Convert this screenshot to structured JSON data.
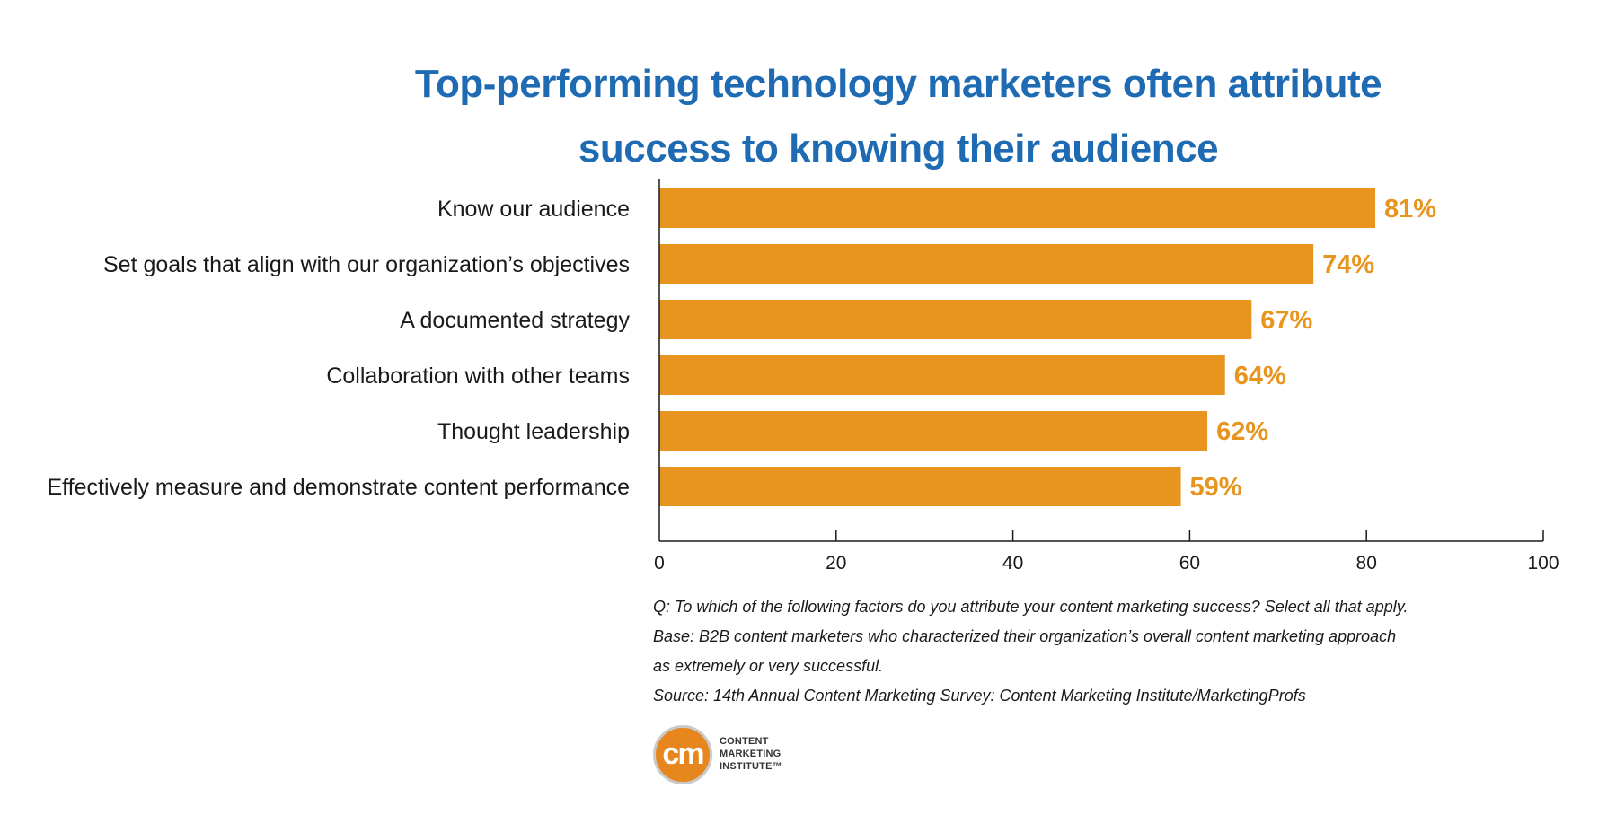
{
  "colors": {
    "title": "#1f6bb3",
    "bar": "#e89520",
    "value_label": "#e89520",
    "axis": "#1a1a1a",
    "text": "#1a1a1a"
  },
  "chart_data": {
    "type": "bar",
    "orientation": "horizontal",
    "title": "Top-performing technology marketers often attribute success to knowing their audience",
    "title_lines": [
      "Top-performing technology marketers often attribute",
      "success to knowing their audience"
    ],
    "categories": [
      "Know our audience",
      "Set goals that align with our organization’s objectives",
      "A documented strategy",
      "Collaboration with other teams",
      "Thought leadership",
      "Effectively measure and demonstrate content performance"
    ],
    "values": [
      81,
      74,
      67,
      64,
      62,
      59
    ],
    "value_labels": [
      "81%",
      "74%",
      "67%",
      "64%",
      "62%",
      "59%"
    ],
    "xlim": [
      0,
      100
    ],
    "xticks": [
      0,
      20,
      40,
      60,
      80,
      100
    ],
    "xtick_labels": [
      "0",
      "20",
      "40",
      "60",
      "80",
      "100"
    ],
    "xlabel": "",
    "ylabel": "",
    "grid": false,
    "legend": "none"
  },
  "notes": [
    "Q: To which of the following factors do you attribute your content marketing success? Select all that apply.",
    "Base: B2B content marketers who characterized their organization’s overall content marketing approach",
    "as extremely or very successful.",
    "Source: 14th Annual Content Marketing Survey: Content Marketing Institute/MarketingProfs"
  ],
  "logo": {
    "mark": "cm",
    "lines": [
      "CONTENT",
      "MARKETING",
      "INSTITUTE™"
    ]
  }
}
